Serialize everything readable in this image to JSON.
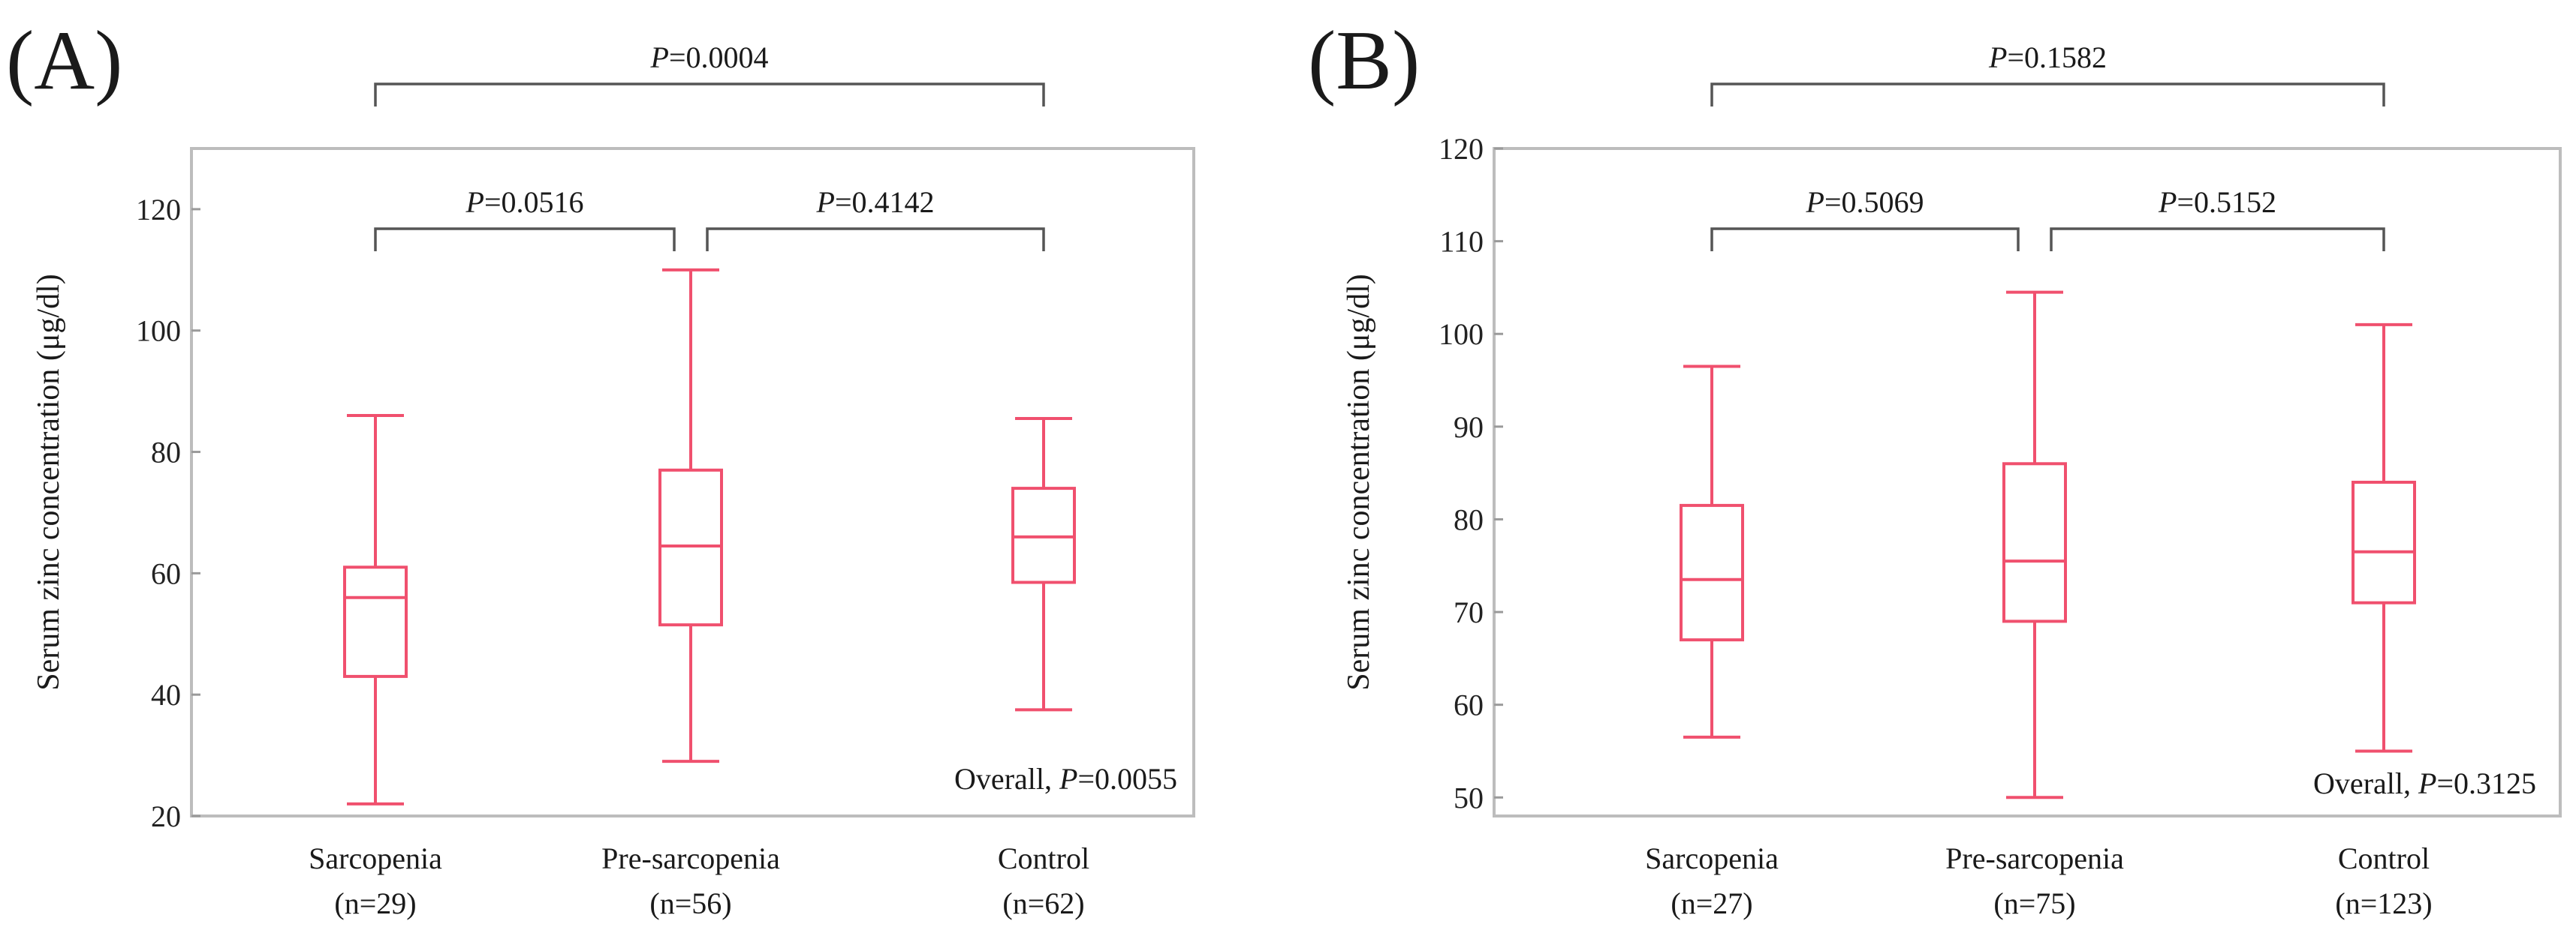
{
  "box_color": "#f0506e",
  "chart_data": [
    {
      "type": "box",
      "panel_label": "(A)",
      "ylabel": "Serum zinc concentration (μg/dl)",
      "ylim": [
        20,
        130
      ],
      "yticks": [
        20,
        40,
        60,
        80,
        100,
        120
      ],
      "categories": [
        {
          "name": "Sarcopenia",
          "n": "(n=29)",
          "min": 22,
          "q1": 43,
          "median": 56,
          "q3": 61,
          "max": 86
        },
        {
          "name": "Pre-sarcopenia",
          "n": "(n=56)",
          "min": 29,
          "q1": 51.5,
          "median": 64.5,
          "q3": 77,
          "max": 110
        },
        {
          "name": "Control",
          "n": "(n=62)",
          "min": 37.5,
          "q1": 58.5,
          "median": 66,
          "q3": 74,
          "max": 85.5
        }
      ],
      "comparisons": [
        {
          "from": 0,
          "to": 2,
          "label": "P=0.0004",
          "level": "top"
        },
        {
          "from": 0,
          "to": 1,
          "label": "P=0.0516",
          "level": "inner"
        },
        {
          "from": 1,
          "to": 2,
          "label": "P=0.4142",
          "level": "inner"
        }
      ],
      "overall": {
        "prefix": "Overall, ",
        "p": "P=0.0055"
      }
    },
    {
      "type": "box",
      "panel_label": "(B)",
      "ylabel": "Serum zinc concentration (μg/dl)",
      "ylim": [
        48,
        120
      ],
      "yticks": [
        50,
        60,
        70,
        80,
        90,
        100,
        110,
        120
      ],
      "categories": [
        {
          "name": "Sarcopenia",
          "n": "(n=27)",
          "min": 56.5,
          "q1": 67,
          "median": 73.5,
          "q3": 81.5,
          "max": 96.5
        },
        {
          "name": "Pre-sarcopenia",
          "n": "(n=75)",
          "min": 50,
          "q1": 69,
          "median": 75.5,
          "q3": 86,
          "max": 104.5
        },
        {
          "name": "Control",
          "n": "(n=123)",
          "min": 55,
          "q1": 71,
          "median": 76.5,
          "q3": 84,
          "max": 101
        }
      ],
      "comparisons": [
        {
          "from": 0,
          "to": 2,
          "label": "P=0.1582",
          "level": "top"
        },
        {
          "from": 0,
          "to": 1,
          "label": "P=0.5069",
          "level": "inner"
        },
        {
          "from": 1,
          "to": 2,
          "label": "P=0.5152",
          "level": "inner"
        }
      ],
      "overall": {
        "prefix": "Overall, ",
        "p": "P=0.3125"
      }
    }
  ]
}
